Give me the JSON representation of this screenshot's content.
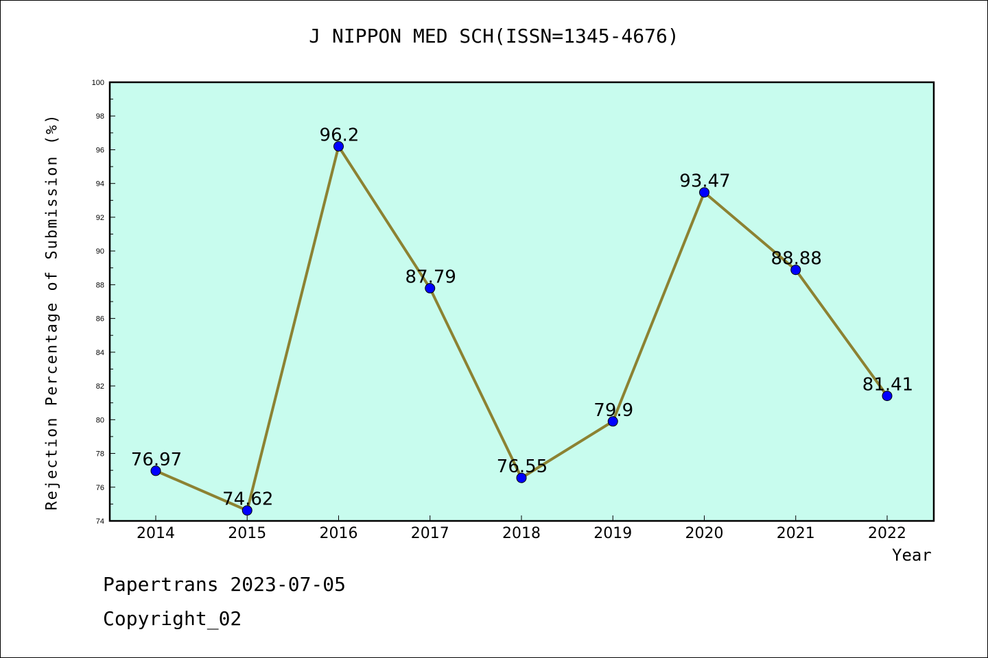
{
  "chart_data": {
    "type": "line",
    "title": "J NIPPON MED SCH(ISSN=1345-4676)",
    "xlabel": "Year",
    "ylabel": "Rejection Percentage of Submission (%)",
    "categories": [
      "2014",
      "2015",
      "2016",
      "2017",
      "2018",
      "2019",
      "2020",
      "2021",
      "2022"
    ],
    "series": [
      {
        "values": [
          76.97,
          74.62,
          96.2,
          87.79,
          76.55,
          79.9,
          93.47,
          88.88,
          81.41
        ],
        "labels": [
          "76.97",
          "74.62",
          "96.2",
          "87.79",
          "76.55",
          "79.9",
          "93.47",
          "88.88",
          "81.41"
        ]
      }
    ],
    "ylim": [
      74,
      100
    ],
    "yticks": [
      74,
      76,
      78,
      80,
      82,
      84,
      86,
      88,
      90,
      92,
      94,
      96,
      98,
      100
    ],
    "grid": false,
    "colors": {
      "plot_bg": "#c8fcee",
      "line": "#8c8232",
      "marker": "#0000ff"
    }
  },
  "footer": {
    "line1": "Papertrans 2023-07-05",
    "line2": "Copyright_02"
  }
}
